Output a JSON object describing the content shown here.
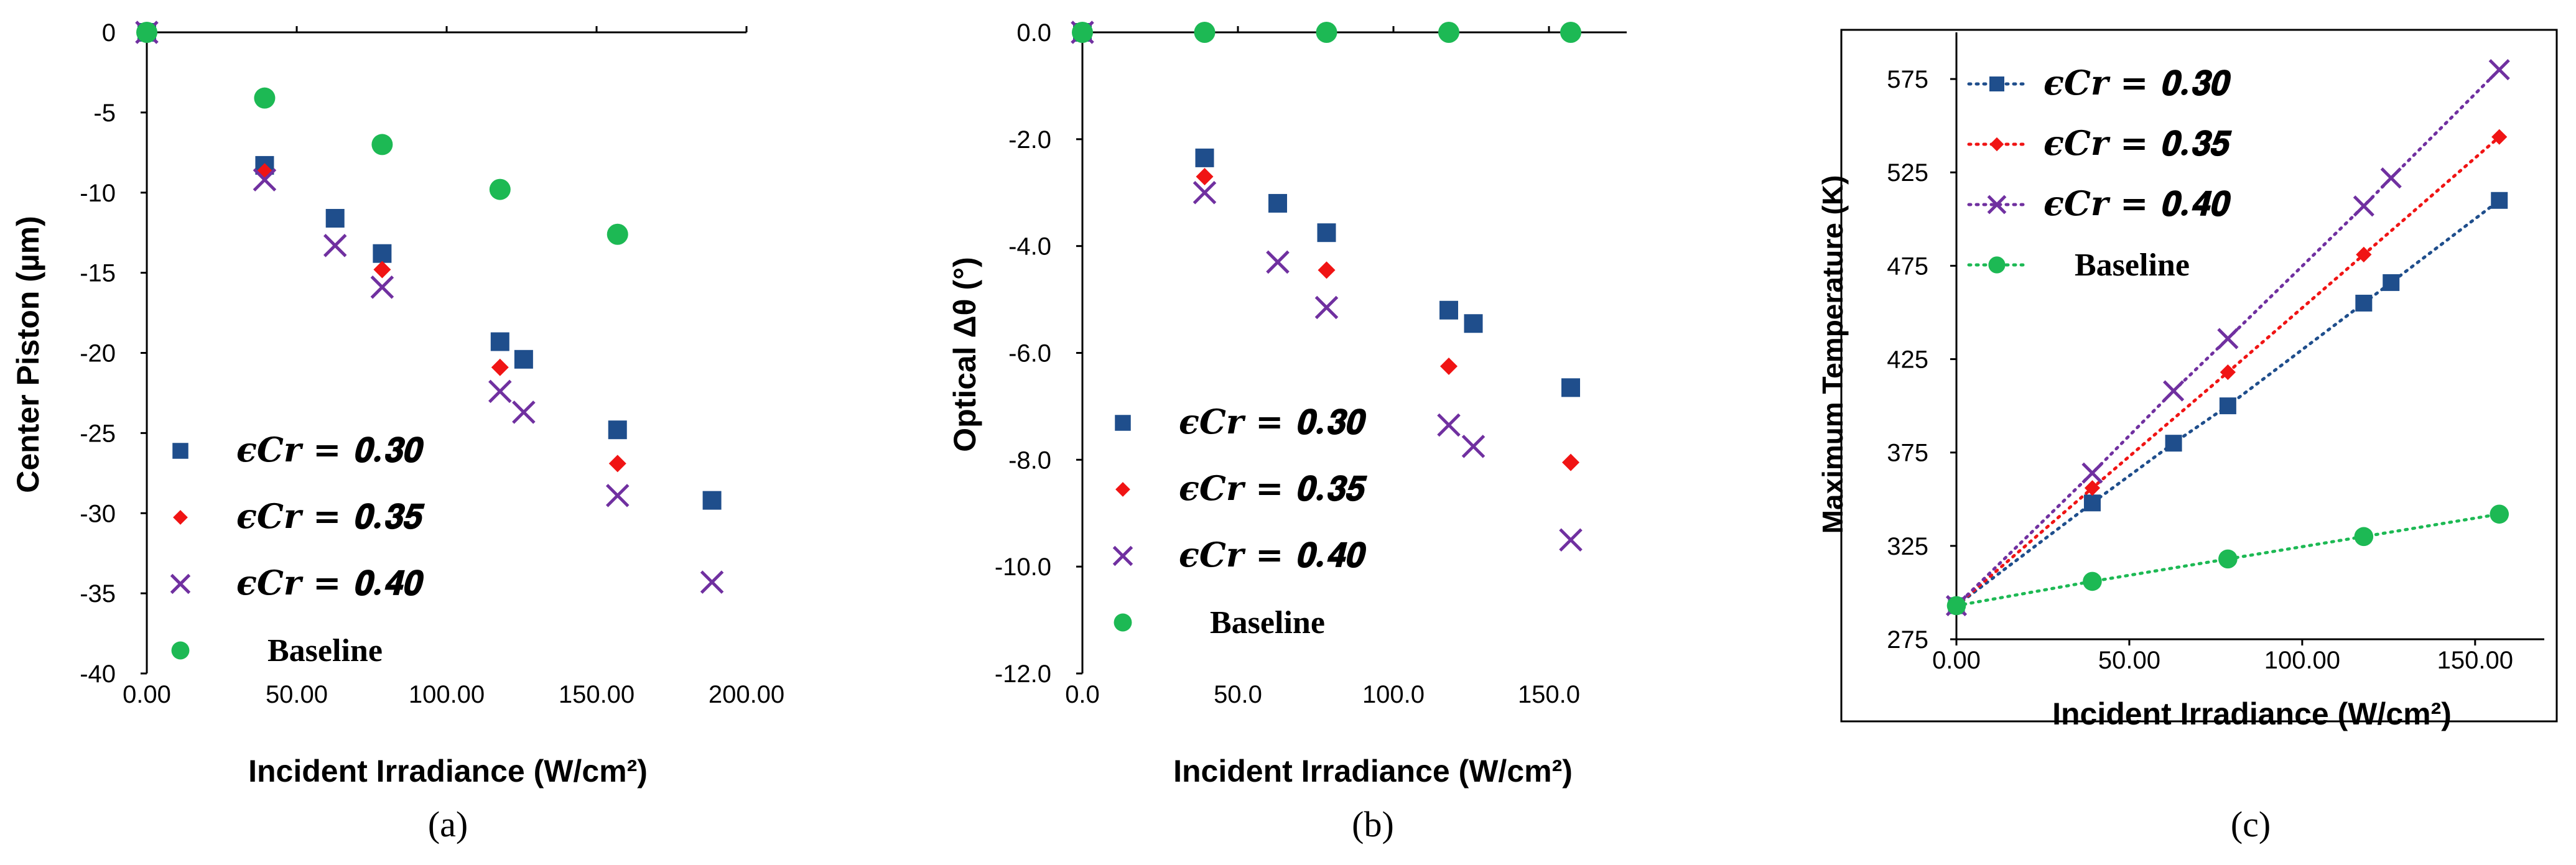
{
  "colors": {
    "eps030": "#1F4E8C",
    "eps035": "#F01414",
    "eps040": "#7030A0",
    "baseline": "#1DB954"
  },
  "chart_data": [
    {
      "id": "a",
      "type": "scatter",
      "panel_label": "(a)",
      "xlabel": "Incident Irradiance (W/cm²)",
      "ylabel": "Center Piston (µm)",
      "xlim": [
        0,
        200
      ],
      "ylim": [
        -40,
        0
      ],
      "xticks": [
        0,
        50,
        100,
        150,
        200
      ],
      "xtick_labels": [
        "0.00",
        "50.00",
        "100.00",
        "150.00",
        "200.00"
      ],
      "yticks": [
        0,
        -5,
        -10,
        -15,
        -20,
        -25,
        -30,
        -35,
        -40
      ],
      "ytick_labels": [
        "0",
        "-5",
        "-10",
        "-15",
        "-20",
        "-25",
        "-30",
        "-35",
        "-40"
      ],
      "legend_position": "bottom-left",
      "series": [
        {
          "name": "ϵ_Cr = 0.30",
          "legend_label": "𝝐𝑪𝒓 = 𝟎.𝟑𝟎",
          "marker": "square",
          "color_key": "eps030",
          "x": [
            0,
            39.3,
            62.8,
            78.5,
            117.8,
            125.7,
            157.0,
            188.5
          ],
          "y": [
            0,
            -8.3,
            -11.6,
            -13.8,
            -19.3,
            -20.4,
            -24.8,
            -29.2
          ]
        },
        {
          "name": "ϵ_Cr = 0.35",
          "legend_label": "𝝐𝑪𝒓 = 𝟎.𝟑𝟓",
          "marker": "diamond",
          "color_key": "eps035",
          "x": [
            0,
            39.3,
            78.5,
            117.8,
            157.0
          ],
          "y": [
            0,
            -8.7,
            -14.8,
            -20.9,
            -26.9
          ]
        },
        {
          "name": "ϵ_Cr = 0.40",
          "legend_label": "𝝐𝑪𝒓 = 𝟎.𝟒𝟎",
          "marker": "x",
          "color_key": "eps040",
          "x": [
            0,
            39.3,
            62.8,
            78.5,
            117.8,
            125.7,
            157.0,
            188.5
          ],
          "y": [
            0,
            -9.2,
            -13.3,
            -15.9,
            -22.4,
            -23.7,
            -28.9,
            -34.3
          ]
        },
        {
          "name": "Baseline",
          "legend_label": "Baseline",
          "marker": "circle",
          "color_key": "baseline",
          "x": [
            0,
            39.3,
            78.5,
            117.8,
            157.0
          ],
          "y": [
            0,
            -4.1,
            -7.0,
            -9.8,
            -12.6
          ]
        }
      ]
    },
    {
      "id": "b",
      "type": "scatter",
      "panel_label": "(b)",
      "xlabel": "Incident Irradiance (W/cm²)",
      "ylabel": "Optical Δθ (°)",
      "xlim": [
        0,
        175
      ],
      "ylim": [
        -12,
        0
      ],
      "xticks": [
        0,
        50,
        100,
        150
      ],
      "xtick_labels": [
        "0.0",
        "50.0",
        "100.0",
        "150.0"
      ],
      "yticks": [
        0,
        -2,
        -4,
        -6,
        -8,
        -10,
        -12
      ],
      "ytick_labels": [
        "0.0",
        "-2.0",
        "-4.0",
        "-6.0",
        "-8.0",
        "-10.0",
        "-12.0"
      ],
      "legend_position": "bottom-left",
      "series": [
        {
          "name": "ϵ_Cr = 0.30",
          "legend_label": "𝝐𝑪𝒓 = 𝟎.𝟑𝟎",
          "marker": "square",
          "color_key": "eps030",
          "x": [
            0,
            39.3,
            62.8,
            78.5,
            117.8,
            125.7,
            157.0
          ],
          "y": [
            0,
            -2.35,
            -3.2,
            -3.75,
            -5.2,
            -5.45,
            -6.65
          ]
        },
        {
          "name": "ϵ_Cr = 0.35",
          "legend_label": "𝝐𝑪𝒓 = 𝟎.𝟑𝟓",
          "marker": "diamond",
          "color_key": "eps035",
          "x": [
            0,
            39.3,
            78.5,
            117.8,
            157.0
          ],
          "y": [
            0,
            -2.7,
            -4.45,
            -6.25,
            -8.05
          ]
        },
        {
          "name": "ϵ_Cr = 0.40",
          "legend_label": "𝝐𝑪𝒓 = 𝟎.𝟒𝟎",
          "marker": "x",
          "color_key": "eps040",
          "x": [
            0,
            39.3,
            62.8,
            78.5,
            117.8,
            125.7,
            157.0
          ],
          "y": [
            0,
            -3.0,
            -4.3,
            -5.15,
            -7.35,
            -7.75,
            -9.5
          ]
        },
        {
          "name": "Baseline",
          "legend_label": "Baseline",
          "marker": "circle",
          "color_key": "baseline",
          "x": [
            0,
            39.3,
            78.5,
            117.8,
            157.0
          ],
          "y": [
            0,
            0,
            0,
            0,
            0
          ]
        }
      ]
    },
    {
      "id": "c",
      "type": "line",
      "panel_label": "(c)",
      "xlabel": "Incident Irradiance (W/cm²)",
      "ylabel": "Maximum Temperature (K)",
      "xlim": [
        0,
        170
      ],
      "ylim": [
        275,
        600
      ],
      "xticks": [
        0,
        50,
        100,
        150
      ],
      "xtick_labels": [
        "0.00",
        "50.00",
        "100.00",
        "150.00"
      ],
      "yticks": [
        275,
        325,
        375,
        425,
        475,
        525,
        575
      ],
      "ytick_labels": [
        "275",
        "325",
        "375",
        "425",
        "475",
        "525",
        "575"
      ],
      "legend_position": "top-left",
      "series": [
        {
          "name": "ϵ_Cr = 0.30",
          "legend_label": "𝝐𝑪𝒓 = 𝟎.𝟑𝟎",
          "marker": "square",
          "color_key": "eps030",
          "x": [
            0,
            39.3,
            62.8,
            78.5,
            117.8,
            125.7,
            157.0
          ],
          "y": [
            293,
            348,
            380,
            400,
            455,
            466,
            510
          ]
        },
        {
          "name": "ϵ_Cr = 0.35",
          "legend_label": "𝝐𝑪𝒓 = 𝟎.𝟑𝟓",
          "marker": "diamond",
          "color_key": "eps035",
          "x": [
            0,
            39.3,
            78.5,
            117.8,
            157.0
          ],
          "y": [
            293,
            356,
            418,
            481,
            544
          ]
        },
        {
          "name": "ϵ_Cr = 0.40",
          "legend_label": "𝝐𝑪𝒓 = 𝟎.𝟒𝟎",
          "marker": "x",
          "color_key": "eps040",
          "x": [
            0,
            39.3,
            62.8,
            78.5,
            117.8,
            125.7,
            157.0
          ],
          "y": [
            293,
            364,
            408,
            436,
            507,
            522,
            580
          ]
        },
        {
          "name": "Baseline",
          "legend_label": "Baseline",
          "marker": "circle",
          "color_key": "baseline",
          "x": [
            0,
            39.3,
            78.5,
            117.8,
            157.0
          ],
          "y": [
            293,
            306,
            318,
            330,
            342
          ]
        }
      ]
    }
  ]
}
